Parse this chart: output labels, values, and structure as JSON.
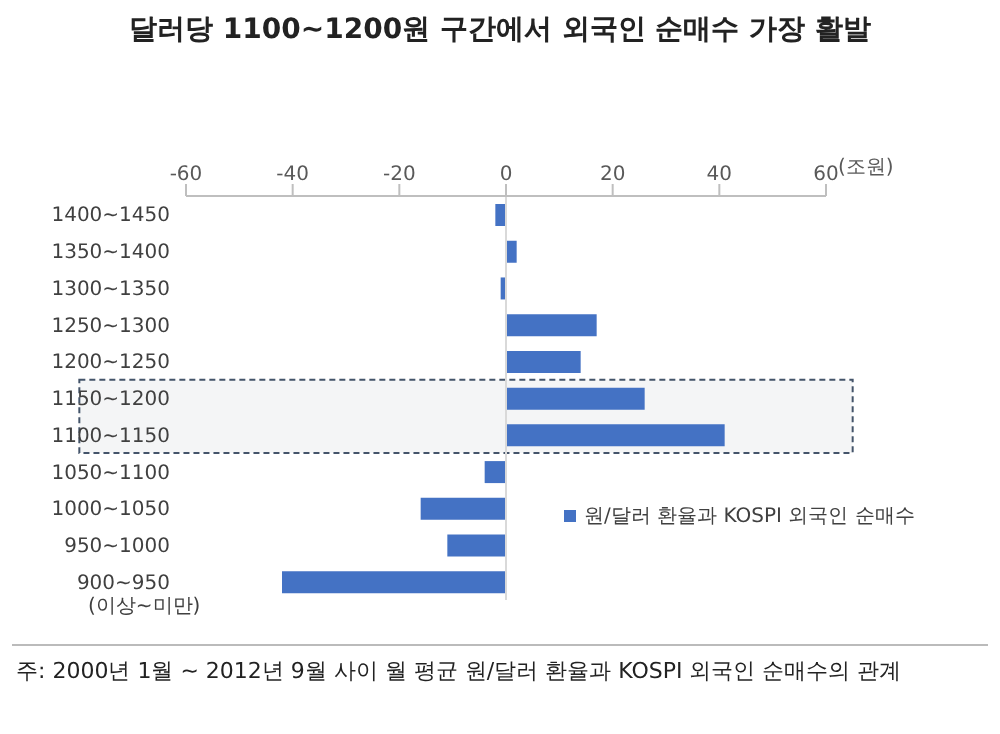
{
  "chart_data": {
    "type": "bar",
    "orientation": "horizontal",
    "title": "달러당 1100~1200원 구간에서 외국인 순매수 가장 활발",
    "xlabel": "(조원)",
    "ylabel": "(이상~미만)",
    "categories": [
      "1400~1450",
      "1350~1400",
      "1300~1350",
      "1250~1300",
      "1200~1250",
      "1150~1200",
      "1100~1150",
      "1050~1100",
      "1000~1050",
      "950~1000",
      "900~950"
    ],
    "series": [
      {
        "name": "원/달러 환율과 KOSPI 외국인 순매수",
        "color": "#4472c4",
        "values": [
          -2,
          2,
          -1,
          17,
          14,
          26,
          41,
          -4,
          -16,
          -11,
          -42
        ]
      }
    ],
    "xlim": [
      -60,
      60
    ],
    "xticks": [
      -60,
      -40,
      -20,
      0,
      20,
      40,
      60
    ],
    "ref_lines": [
      {
        "axis": "x",
        "value": 0,
        "color": "#d9d9d9"
      }
    ],
    "bands": [
      {
        "axis": "y",
        "from": "1150~1200",
        "to": "1100~1150",
        "color": "#44546a"
      }
    ],
    "legend": "right",
    "grid": false,
    "annotations": [
      "주: 2000년 1월 ~ 2012년 9월 사이 월 평균 원/달러 환율과 KOSPI 외국인 순매수의 관계"
    ]
  }
}
